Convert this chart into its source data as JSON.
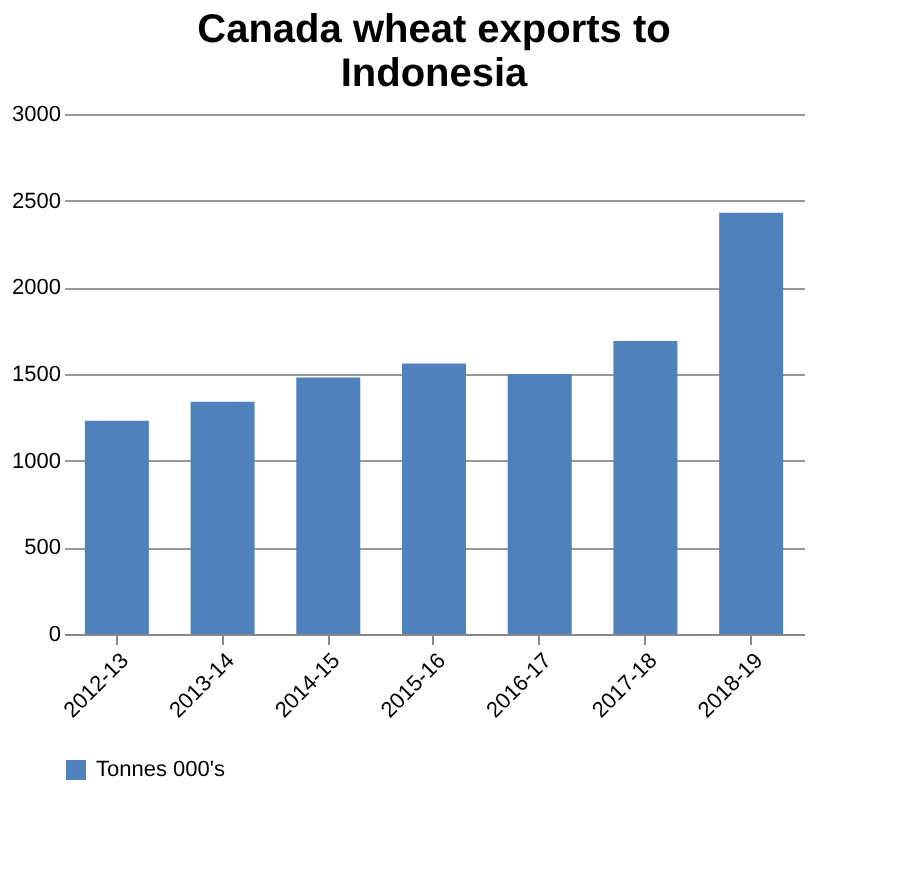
{
  "chart_data": {
    "type": "bar",
    "title": [
      "Canada wheat exports to",
      "Indonesia"
    ],
    "categories": [
      "2012-13",
      "2013-14",
      "2014-15",
      "2015-16",
      "2016-17",
      "2017-18",
      "2018-19"
    ],
    "series": [
      {
        "name": "Tonnes 000's",
        "color": "#4f81bd",
        "values": [
          1230,
          1340,
          1480,
          1560,
          1500,
          1690,
          2430
        ]
      }
    ],
    "ylim": [
      0,
      3000
    ],
    "yticks": [
      0,
      500,
      1000,
      1500,
      2000,
      2500,
      3000
    ],
    "grid": "y",
    "legend": "bottom"
  }
}
